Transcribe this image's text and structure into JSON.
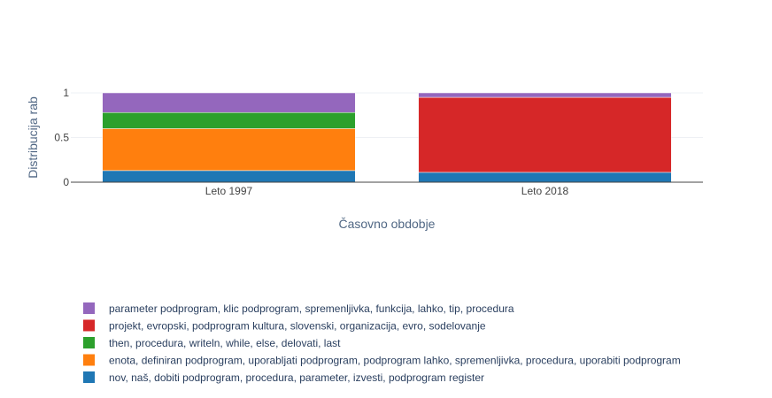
{
  "chart_data": {
    "type": "bar",
    "stacked": true,
    "categories": [
      "Leto 1997",
      "Leto 2018"
    ],
    "xlabel": "Časovno obdobje",
    "ylabel": "Distribucija rab",
    "ylim": [
      0,
      1
    ],
    "yticks": [
      {
        "value": 0,
        "label": "0"
      },
      {
        "value": 0.5,
        "label": "0.5"
      },
      {
        "value": 1,
        "label": "1"
      }
    ],
    "grid": true,
    "legend_position": "bottom",
    "series": [
      {
        "name": "nov, naš, dobiti podprogram, procedura, parameter, izvesti, podprogram register",
        "color": "#1f77b4",
        "values": [
          0.13,
          0.11
        ]
      },
      {
        "name": "enota, definiran podprogram, uporabljati podprogram, podprogram lahko, spremenljivka, procedura, uporabiti podprogram",
        "color": "#ff7f0e",
        "values": [
          0.47,
          0.0
        ]
      },
      {
        "name": "then, procedura, writeln, while, else, delovati, last",
        "color": "#2ca02c",
        "values": [
          0.18,
          0.0
        ]
      },
      {
        "name": "projekt, evropski, podprogram kultura, slovenski, organizacija, evro, sodelovanje",
        "color": "#d62728",
        "values": [
          0.0,
          0.84
        ]
      },
      {
        "name": "parameter podprogram, klic podprogram, spremenljivka, funkcija, lahko, tip, procedura",
        "color": "#9467bd",
        "values": [
          0.22,
          0.05
        ]
      }
    ]
  }
}
